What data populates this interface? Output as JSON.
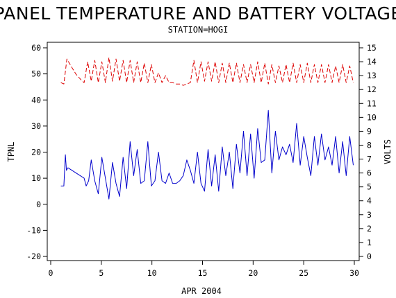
{
  "chart_data": {
    "type": "line",
    "title": "PANEL TEMPERATURE AND BATTERY VOLTAGE",
    "subtitle": "STATION=HOGI",
    "xlabel": "APR 2004",
    "ylabel_left": "TPNL",
    "ylabel_right": "VOLTS",
    "xlim": [
      0,
      30
    ],
    "x_ticks": [
      "0",
      "5",
      "10",
      "15",
      "20",
      "25",
      "30"
    ],
    "ylim_left": [
      -20,
      60
    ],
    "y_ticks_left": [
      "-20",
      "-10",
      "0",
      "10",
      "20",
      "30",
      "40",
      "50",
      "60"
    ],
    "ylim_right": [
      0,
      15
    ],
    "y_ticks_right": [
      "0",
      "1",
      "2",
      "3",
      "4",
      "5",
      "6",
      "7",
      "8",
      "9",
      "10",
      "11",
      "12",
      "13",
      "14",
      "15"
    ],
    "grid": false,
    "colors": {
      "temperature": "#0000cc",
      "voltage": "#dd0000"
    },
    "series": [
      {
        "axis": "left",
        "style": "solid",
        "x": [
          1.0,
          1.3,
          1.45,
          1.55,
          1.7,
          2.5,
          3.3,
          3.5,
          3.75,
          4.0,
          4.35,
          4.7,
          5.05,
          5.4,
          5.75,
          6.1,
          6.45,
          6.8,
          7.15,
          7.5,
          7.85,
          8.2,
          8.55,
          8.9,
          9.25,
          9.6,
          9.95,
          10.3,
          10.65,
          11.0,
          11.35,
          11.7,
          12.05,
          12.4,
          12.75,
          13.1,
          13.45,
          13.8,
          14.15,
          14.5,
          14.85,
          15.2,
          15.55,
          15.9,
          16.25,
          16.6,
          16.95,
          17.3,
          17.65,
          18.0,
          18.35,
          18.7,
          19.05,
          19.4,
          19.75,
          20.1,
          20.45,
          20.8,
          21.15,
          21.5,
          21.85,
          22.2,
          22.55,
          22.9,
          23.25,
          23.6,
          23.95,
          24.3,
          24.65,
          25.0,
          25.35,
          25.7,
          26.05,
          26.4,
          26.75,
          27.1,
          27.45,
          27.8,
          28.15,
          28.5,
          28.85,
          29.2,
          29.55,
          29.9
        ],
        "y": [
          7,
          7,
          19,
          13,
          14,
          12,
          10,
          7,
          9,
          17,
          9,
          4,
          18,
          10,
          2,
          16,
          8,
          3,
          18,
          6,
          24,
          11,
          21,
          8,
          9,
          24,
          7,
          9,
          20,
          9,
          8,
          12,
          8,
          8,
          9,
          11,
          17,
          13,
          8,
          20,
          8,
          5,
          21,
          7,
          19,
          5,
          22,
          11,
          20,
          6,
          23,
          12,
          28,
          11,
          27,
          10,
          29,
          16,
          17,
          36,
          12,
          28,
          17,
          22,
          19,
          23,
          16,
          31,
          15,
          26,
          18,
          11,
          26,
          15,
          27,
          17,
          22,
          15,
          26,
          12,
          24,
          11,
          26,
          15
        ]
      },
      {
        "axis": "right",
        "style": "dashed",
        "x": [
          1.0,
          1.3,
          1.6,
          2.0,
          2.5,
          3.0,
          3.3,
          3.65,
          4.0,
          4.35,
          4.7,
          5.05,
          5.4,
          5.75,
          6.1,
          6.45,
          6.8,
          7.15,
          7.5,
          7.85,
          8.2,
          8.55,
          8.9,
          9.25,
          9.6,
          9.95,
          10.3,
          10.65,
          11.0,
          11.35,
          11.7,
          12.05,
          12.4,
          12.75,
          13.1,
          13.45,
          13.8,
          14.15,
          14.5,
          14.85,
          15.2,
          15.55,
          15.9,
          16.25,
          16.6,
          16.95,
          17.3,
          17.65,
          18.0,
          18.35,
          18.7,
          19.05,
          19.4,
          19.75,
          20.1,
          20.45,
          20.8,
          21.15,
          21.5,
          21.85,
          22.2,
          22.55,
          22.9,
          23.25,
          23.6,
          23.95,
          24.3,
          24.65,
          25.0,
          25.35,
          25.7,
          26.05,
          26.4,
          26.75,
          27.1,
          27.45,
          27.8,
          28.15,
          28.5,
          28.85,
          29.2,
          29.55,
          29.9
        ],
        "y": [
          12.5,
          12.4,
          14.2,
          13.7,
          13.1,
          12.7,
          12.5,
          14.0,
          12.6,
          14.1,
          12.5,
          14.0,
          12.5,
          14.3,
          12.6,
          14.2,
          12.6,
          14.1,
          12.5,
          14.1,
          12.5,
          14.0,
          12.5,
          13.9,
          12.5,
          13.8,
          12.5,
          13.2,
          12.5,
          13.0,
          12.5,
          12.5,
          12.4,
          12.4,
          12.3,
          12.4,
          12.5,
          14.1,
          12.5,
          14.0,
          12.6,
          14.0,
          12.6,
          14.0,
          12.5,
          13.9,
          12.5,
          13.9,
          12.5,
          13.9,
          12.5,
          13.8,
          12.5,
          13.8,
          12.5,
          14.0,
          12.5,
          13.9,
          12.4,
          13.8,
          12.5,
          13.7,
          12.5,
          13.8,
          12.5,
          13.9,
          12.5,
          13.8,
          12.5,
          13.9,
          12.5,
          13.8,
          12.5,
          13.8,
          12.5,
          13.8,
          12.5,
          13.7,
          12.5,
          13.8,
          12.5,
          13.7,
          12.5
        ]
      }
    ]
  }
}
